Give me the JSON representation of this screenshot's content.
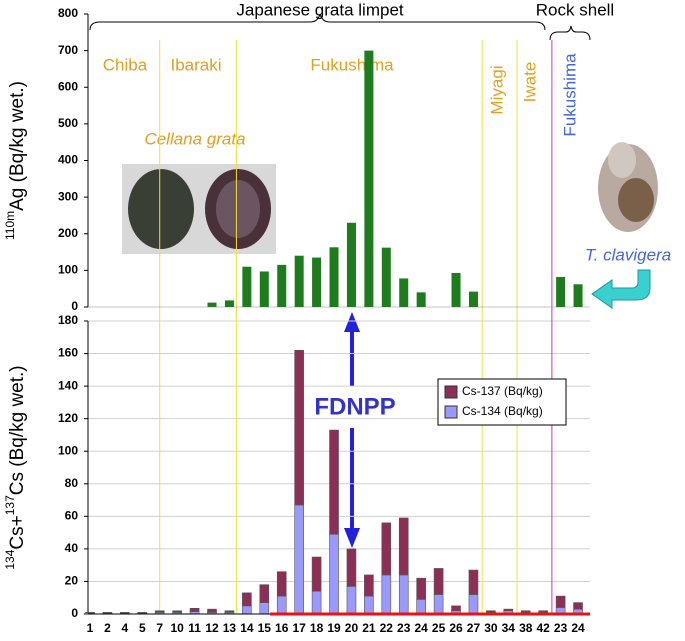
{
  "chart_data": [
    {
      "type": "bar",
      "color": "#1e7b1e",
      "ylabel": [
        "110m",
        "Ag (Bq/kg wet.)"
      ],
      "ylim": [
        0,
        800
      ],
      "yticks": [
        0,
        100,
        200,
        300,
        400,
        500,
        600,
        700,
        800
      ],
      "values": [
        0,
        0,
        0,
        0,
        0,
        0,
        0,
        12,
        18,
        110,
        97,
        115,
        140,
        135,
        163,
        230,
        700,
        162,
        78,
        40,
        0,
        93,
        42,
        0,
        0,
        0,
        0,
        82,
        62
      ],
      "annotations": {
        "group_1": "Japanese grata limpet",
        "group_2": "Rock shell",
        "region_1": "Chiba",
        "region_2": "Ibaraki",
        "region_3": "Fukushima",
        "region_4": "Miyagi",
        "region_5": "Iwate",
        "region_6": "Fukushima",
        "species_1": "Cellana grata",
        "species_2": "T. clavigera"
      }
    },
    {
      "type": "stacked_bar",
      "ylabel": [
        "134",
        "Cs+",
        "137",
        "Cs (Bq/kg wet.)"
      ],
      "categories": [
        "1",
        "2",
        "4",
        "5",
        "7",
        "10",
        "11",
        "12",
        "13",
        "14",
        "15",
        "16",
        "17",
        "18",
        "19",
        "20",
        "21",
        "22",
        "23",
        "24",
        "25",
        "26",
        "27",
        "30",
        "34",
        "38",
        "42",
        "23",
        "24"
      ],
      "ylim": [
        0,
        180
      ],
      "yticks": [
        0,
        20,
        40,
        60,
        80,
        100,
        120,
        140,
        160,
        180
      ],
      "grid": true,
      "series": [
        {
          "name": "Cs-137 (Bq/kg)",
          "color": "#8c2e55",
          "values": [
            0.5,
            0.5,
            0.5,
            0.5,
            1,
            1,
            2,
            2,
            1,
            8,
            11,
            15,
            95,
            21,
            64,
            23,
            13,
            32,
            35,
            13,
            16,
            3,
            15,
            1,
            1,
            1,
            1,
            7,
            4
          ]
        },
        {
          "name": "Cs-134 (Bq/kg)",
          "color": "#9999ff",
          "values": [
            0.5,
            0.5,
            0.5,
            0.5,
            1,
            1,
            1.5,
            1,
            1,
            5,
            7,
            11,
            67,
            14,
            49,
            17,
            11,
            24,
            24,
            9,
            12,
            2,
            12,
            1,
            2,
            1,
            1,
            4,
            3
          ]
        }
      ],
      "annotations": {
        "site": "FDNPP"
      }
    }
  ]
}
